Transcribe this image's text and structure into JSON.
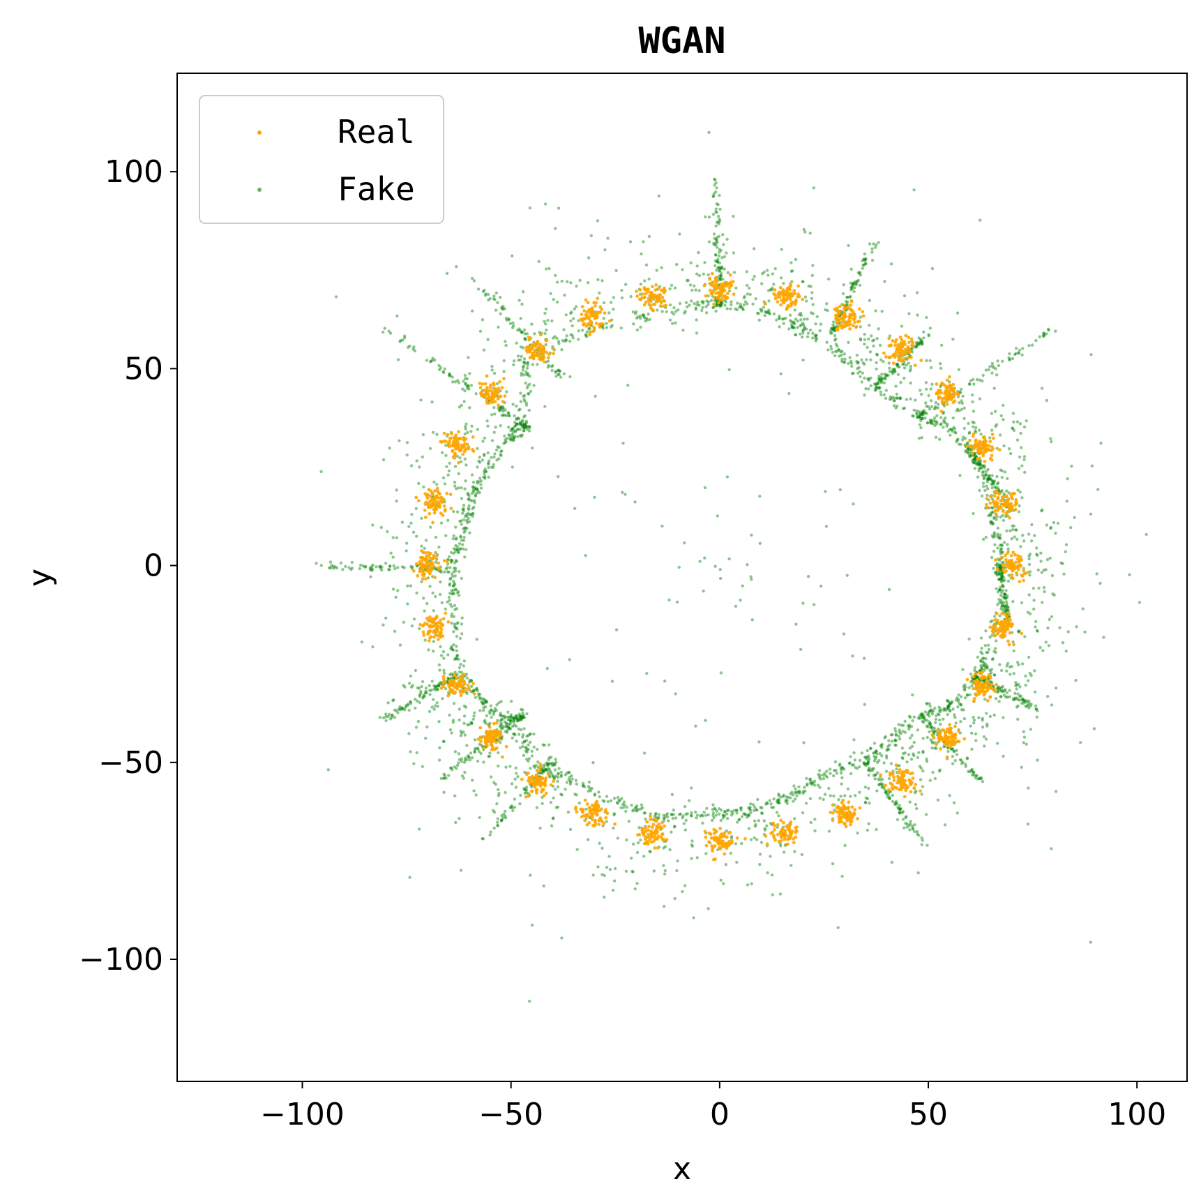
{
  "chart_data": {
    "type": "scatter",
    "title": "WGAN",
    "xlabel": "x",
    "ylabel": "y",
    "xlim": [
      -130,
      112
    ],
    "ylim": [
      -131,
      125
    ],
    "xticks": [
      -100,
      -50,
      0,
      50,
      100
    ],
    "yticks": [
      -100,
      -50,
      0,
      50,
      100
    ],
    "xtick_labels": [
      "−100",
      "−50",
      "0",
      "50",
      "100"
    ],
    "ytick_labels": [
      "−100",
      "−50",
      "0",
      "50",
      "100"
    ],
    "grid": false,
    "legend": {
      "placement": "top-left",
      "entries": [
        "Real",
        "Fake"
      ]
    },
    "series": [
      {
        "name": "Real",
        "color": "#FFA500",
        "cluster_centers": [
          [
            0,
            70
          ],
          [
            15.9,
            68.2
          ],
          [
            30.4,
            63.1
          ],
          [
            43.6,
            54.8
          ],
          [
            54.6,
            43.6
          ],
          [
            62.9,
            30.4
          ],
          [
            68.2,
            15.6
          ],
          [
            70,
            0
          ],
          [
            68.2,
            -15.6
          ],
          [
            62.9,
            -30.4
          ],
          [
            54.6,
            -43.6
          ],
          [
            43.6,
            -54.8
          ],
          [
            30.4,
            -63.1
          ],
          [
            15.9,
            -68.2
          ],
          [
            0,
            -70
          ],
          [
            -15.9,
            -68.2
          ],
          [
            -30.4,
            -63.1
          ],
          [
            -43.6,
            -54.8
          ],
          [
            -54.6,
            -43.6
          ],
          [
            -62.9,
            -30.4
          ],
          [
            -68.2,
            -15.6
          ],
          [
            -70,
            0
          ],
          [
            -68.2,
            15.6
          ],
          [
            -62.9,
            30.4
          ],
          [
            -54.6,
            43.6
          ],
          [
            -43.6,
            54.8
          ],
          [
            -30.4,
            63.1
          ],
          [
            -15.9,
            68.2
          ]
        ],
        "cluster_std": 1.6
      },
      {
        "name": "Fake",
        "color": "#008000",
        "ring_path": [
          [
            -47,
            52
          ],
          [
            -35,
            58
          ],
          [
            -20,
            63
          ],
          [
            -5,
            66
          ],
          [
            0,
            67
          ],
          [
            10,
            65
          ],
          [
            20,
            60
          ],
          [
            30,
            53
          ],
          [
            36,
            46
          ],
          [
            47,
            38
          ],
          [
            55,
            35
          ],
          [
            61,
            29
          ],
          [
            64,
            18
          ],
          [
            67,
            5
          ],
          [
            68,
            -3
          ],
          [
            66,
            -15
          ],
          [
            63,
            -25
          ],
          [
            61,
            -30
          ],
          [
            55,
            -36
          ],
          [
            48,
            -38
          ],
          [
            42,
            -44
          ],
          [
            35,
            -49
          ],
          [
            25,
            -53
          ],
          [
            15,
            -60
          ],
          [
            5,
            -63
          ],
          [
            -5,
            -63
          ],
          [
            -15,
            -64
          ],
          [
            -25,
            -60
          ],
          [
            -35,
            -55
          ],
          [
            -45,
            -50
          ],
          [
            -48,
            -38
          ],
          [
            -52,
            -40
          ],
          [
            -58,
            -33
          ],
          [
            -62,
            -28
          ],
          [
            -64,
            -12
          ],
          [
            -64,
            0
          ],
          [
            -62,
            8
          ],
          [
            -59,
            18
          ],
          [
            -55,
            26
          ],
          [
            -50,
            33
          ],
          [
            -46,
            36
          ],
          [
            -47,
            52
          ]
        ],
        "spikes": [
          [
            [
              0,
              66
            ],
            [
              -1,
              98
            ]
          ],
          [
            [
              27,
              59
            ],
            [
              37,
              82
            ]
          ],
          [
            [
              37,
              45
            ],
            [
              50,
              59
            ]
          ],
          [
            [
              48,
              38
            ],
            [
              80,
              60
            ]
          ],
          [
            [
              60,
              29
            ],
            [
              70,
              14
            ]
          ],
          [
            [
              67,
              0
            ],
            [
              69,
              -16
            ]
          ],
          [
            [
              61,
              -28
            ],
            [
              77,
              -37
            ]
          ],
          [
            [
              48,
              -38
            ],
            [
              63,
              -55
            ]
          ],
          [
            [
              35,
              -50
            ],
            [
              50,
              -72
            ]
          ],
          [
            [
              -40,
              -50
            ],
            [
              -57,
              -70
            ]
          ],
          [
            [
              -47,
              -38
            ],
            [
              -67,
              -54
            ]
          ],
          [
            [
              -63,
              -28
            ],
            [
              -82,
              -40
            ]
          ],
          [
            [
              -63,
              -1
            ],
            [
              -97,
              0
            ]
          ],
          [
            [
              -46,
              35
            ],
            [
              -80,
              60
            ]
          ],
          [
            [
              -38,
              48
            ],
            [
              -60,
              74
            ]
          ]
        ],
        "n_points": 4200
      }
    ]
  }
}
